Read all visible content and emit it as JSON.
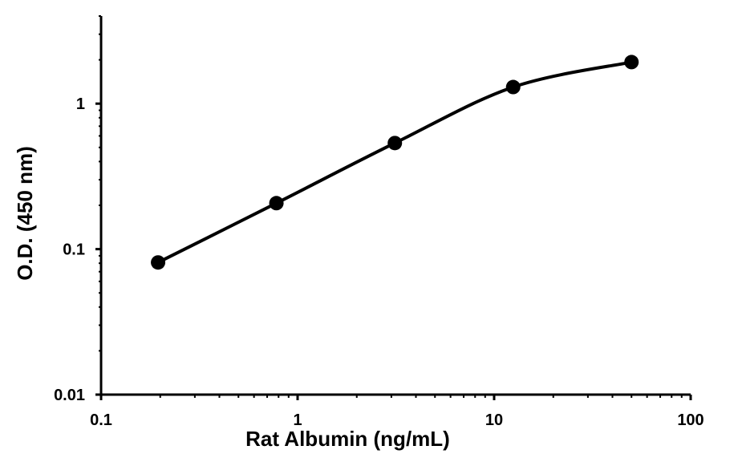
{
  "chart_data": {
    "type": "line",
    "title": "",
    "xlabel": "Rat Albumin (ng/mL)",
    "ylabel": "O.D. (450 nm)",
    "x_scale": "log",
    "y_scale": "log",
    "xlim": [
      0.1,
      100
    ],
    "ylim": [
      0.01,
      4
    ],
    "x_ticks": [
      {
        "value": 0.1,
        "label": "0.1"
      },
      {
        "value": 1,
        "label": "1"
      },
      {
        "value": 10,
        "label": "10"
      },
      {
        "value": 100,
        "label": "100"
      }
    ],
    "y_ticks": [
      {
        "value": 0.01,
        "label": "0.01"
      },
      {
        "value": 0.1,
        "label": "0.1"
      },
      {
        "value": 1,
        "label": "1"
      }
    ],
    "grid": false,
    "legend": "none",
    "series": [
      {
        "x": [
          0.195,
          0.78,
          3.125,
          12.5,
          50
        ],
        "y": [
          0.081,
          0.207,
          0.536,
          1.3,
          1.93
        ],
        "marker": "circle",
        "smooth": true
      }
    ],
    "colors": {
      "line": "#000000",
      "marker": "#000000",
      "axis": "#000000",
      "background": "#ffffff"
    }
  }
}
